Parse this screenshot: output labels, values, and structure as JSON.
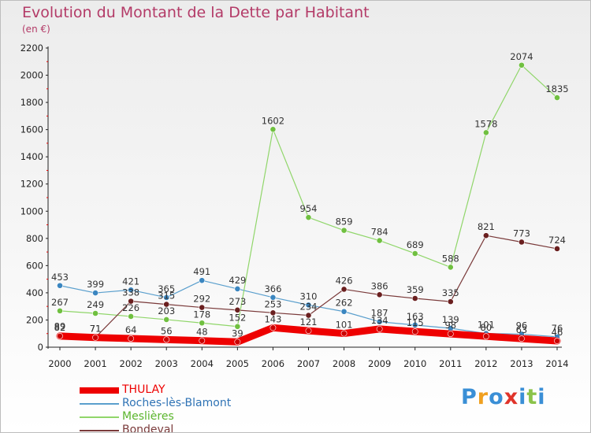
{
  "header": {
    "title": "Evolution du Montant de la Dette par Habitant",
    "subtitle": "(en €)"
  },
  "logo": {
    "text": "Proxiti",
    "colors": [
      "#3a8fd6",
      "#f0a020",
      "#3a8fd6",
      "#e0342a",
      "#3a8fd6",
      "#8bc34a",
      "#3a8fd6"
    ]
  },
  "chart_data": {
    "type": "line",
    "title": "Evolution du Montant de la Dette par Habitant",
    "subtitle": "(en €)",
    "xlabel": "",
    "ylabel": "",
    "ylim": [
      0,
      2200
    ],
    "yticks": [
      0,
      200,
      400,
      600,
      800,
      1000,
      1200,
      1400,
      1600,
      1800,
      2000,
      2200
    ],
    "grid": false,
    "legend": "bottom-left",
    "x": [
      "2000",
      "2001",
      "2002",
      "2003",
      "2004",
      "2005",
      "2006",
      "2007",
      "2008",
      "2009",
      "2010",
      "2011",
      "2012",
      "2013",
      "2014"
    ],
    "series": [
      {
        "name": "Roches-lès-Blamont",
        "color": "#5a9fcd",
        "marker": "#3b86c0",
        "width": 1.2,
        "values": [
          453,
          399,
          421,
          365,
          491,
          429,
          366,
          310,
          262,
          187,
          163,
          139,
          101,
          96,
          76
        ]
      },
      {
        "name": "Meslières",
        "color": "#90d66a",
        "marker": "#70c040",
        "width": 1.2,
        "values": [
          267,
          249,
          226,
          203,
          178,
          152,
          1602,
          954,
          859,
          784,
          689,
          588,
          1578,
          2074,
          1835
        ]
      },
      {
        "name": "Bondeval",
        "color": "#7a3a3a",
        "marker": "#6a1f1f",
        "width": 1.2,
        "values": [
          89,
          71,
          338,
          315,
          292,
          273,
          253,
          234,
          426,
          386,
          359,
          335,
          821,
          773,
          724
        ]
      },
      {
        "name": "THULAY",
        "color": "#ee0000",
        "marker": "#cc0000",
        "width": 9,
        "values": [
          82,
          71,
          64,
          56,
          48,
          39,
          143,
          121,
          101,
          134,
          115,
          98,
          80,
          63,
          46
        ]
      }
    ]
  }
}
